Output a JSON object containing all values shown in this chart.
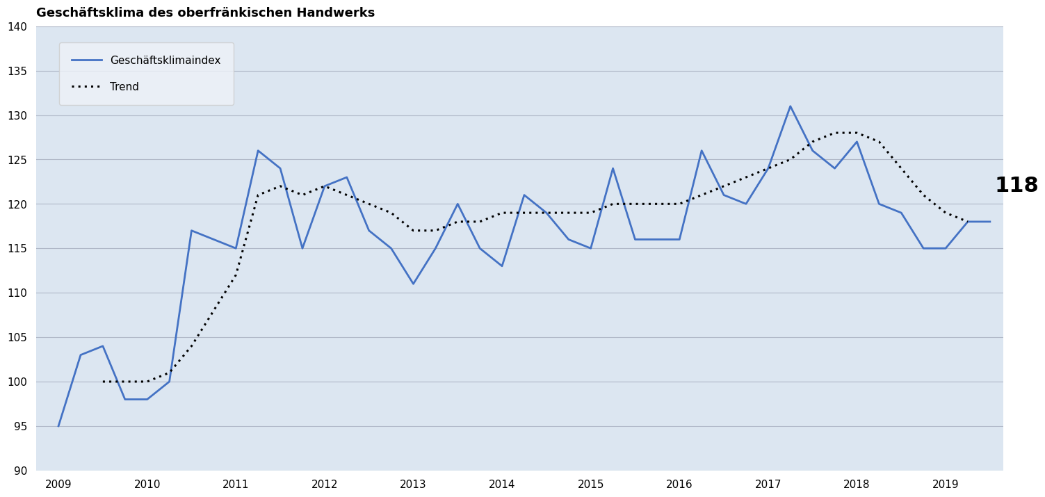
{
  "title": "Geschäftsklima des oberfränkischen Handwerks",
  "figure_bg_color": "#ffffff",
  "plot_bg_color": "#dce6f1",
  "line_color": "#4472c4",
  "trend_color": "#000000",
  "ylim": [
    90,
    140
  ],
  "yticks": [
    90,
    95,
    100,
    105,
    110,
    115,
    120,
    125,
    130,
    135,
    140
  ],
  "annotation_value": "118",
  "legend_label_line": "Geschäftsklimaindex",
  "legend_label_trend": "Trend",
  "x_labels": [
    "2009",
    "2010",
    "2011",
    "2012",
    "2013",
    "2014",
    "2015",
    "2016",
    "2017",
    "2018",
    "2019"
  ],
  "main_data": {
    "x": [
      2009.0,
      2009.25,
      2009.5,
      2009.75,
      2010.0,
      2010.25,
      2010.5,
      2010.75,
      2011.0,
      2011.25,
      2011.5,
      2011.75,
      2012.0,
      2012.25,
      2012.5,
      2012.75,
      2013.0,
      2013.25,
      2013.5,
      2013.75,
      2014.0,
      2014.25,
      2014.5,
      2014.75,
      2015.0,
      2015.25,
      2015.5,
      2015.75,
      2016.0,
      2016.25,
      2016.5,
      2016.75,
      2017.0,
      2017.25,
      2017.5,
      2017.75,
      2018.0,
      2018.25,
      2018.5,
      2018.75,
      2019.0,
      2019.25,
      2019.5
    ],
    "y": [
      95,
      103,
      104,
      98,
      98,
      100,
      117,
      116,
      115,
      126,
      124,
      115,
      122,
      123,
      117,
      115,
      111,
      115,
      120,
      115,
      113,
      121,
      119,
      116,
      115,
      124,
      116,
      116,
      116,
      126,
      121,
      120,
      124,
      131,
      126,
      124,
      127,
      120,
      119,
      115,
      115,
      118,
      118
    ]
  },
  "trend_data": {
    "x": [
      2009.5,
      2009.75,
      2010.0,
      2010.25,
      2010.5,
      2010.75,
      2011.0,
      2011.25,
      2011.5,
      2011.75,
      2012.0,
      2012.25,
      2012.5,
      2012.75,
      2013.0,
      2013.25,
      2013.5,
      2013.75,
      2014.0,
      2014.25,
      2014.5,
      2014.75,
      2015.0,
      2015.25,
      2015.5,
      2015.75,
      2016.0,
      2016.25,
      2016.5,
      2016.75,
      2017.0,
      2017.25,
      2017.5,
      2017.75,
      2018.0,
      2018.25,
      2018.5,
      2018.75,
      2019.0,
      2019.25
    ],
    "y": [
      100,
      100,
      100,
      101,
      104,
      108,
      112,
      121,
      122,
      121,
      122,
      121,
      120,
      119,
      117,
      117,
      118,
      118,
      119,
      119,
      119,
      119,
      119,
      120,
      120,
      120,
      120,
      121,
      122,
      123,
      124,
      125,
      127,
      128,
      128,
      127,
      124,
      121,
      119,
      118
    ]
  }
}
